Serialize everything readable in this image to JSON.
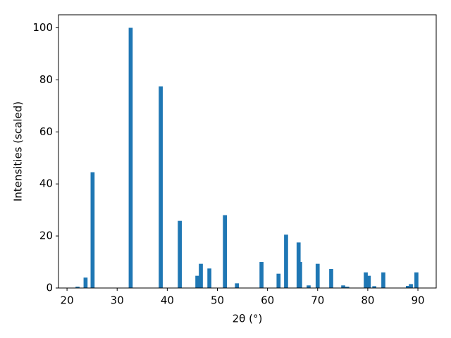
{
  "chart_data": {
    "type": "bar",
    "xlabel": "2θ (°)",
    "ylabel": "Intensities (scaled)",
    "x": [
      22.1,
      23.7,
      25.1,
      32.7,
      38.7,
      42.5,
      46.0,
      46.7,
      48.4,
      51.5,
      53.9,
      58.8,
      62.2,
      63.7,
      66.2,
      66.5,
      68.2,
      70.0,
      72.7,
      75.1,
      75.9,
      79.6,
      80.2,
      81.3,
      83.1,
      88.0,
      88.6,
      89.7
    ],
    "values": [
      0.5,
      4,
      44.5,
      100,
      77.5,
      25.8,
      4.7,
      9.3,
      7.5,
      28,
      1.8,
      10,
      5.5,
      20.5,
      17.5,
      10,
      1,
      9.3,
      7.3,
      1,
      0.5,
      6,
      4.7,
      0.7,
      6,
      0.8,
      1.5,
      6
    ],
    "color": "#1f77b4",
    "xlim": [
      18.3,
      93.65
    ],
    "ylim": [
      0,
      105
    ],
    "xticks": [
      20,
      30,
      40,
      50,
      60,
      70,
      80,
      90
    ],
    "yticks": [
      0,
      20,
      40,
      60,
      80,
      100
    ],
    "grid": false
  }
}
